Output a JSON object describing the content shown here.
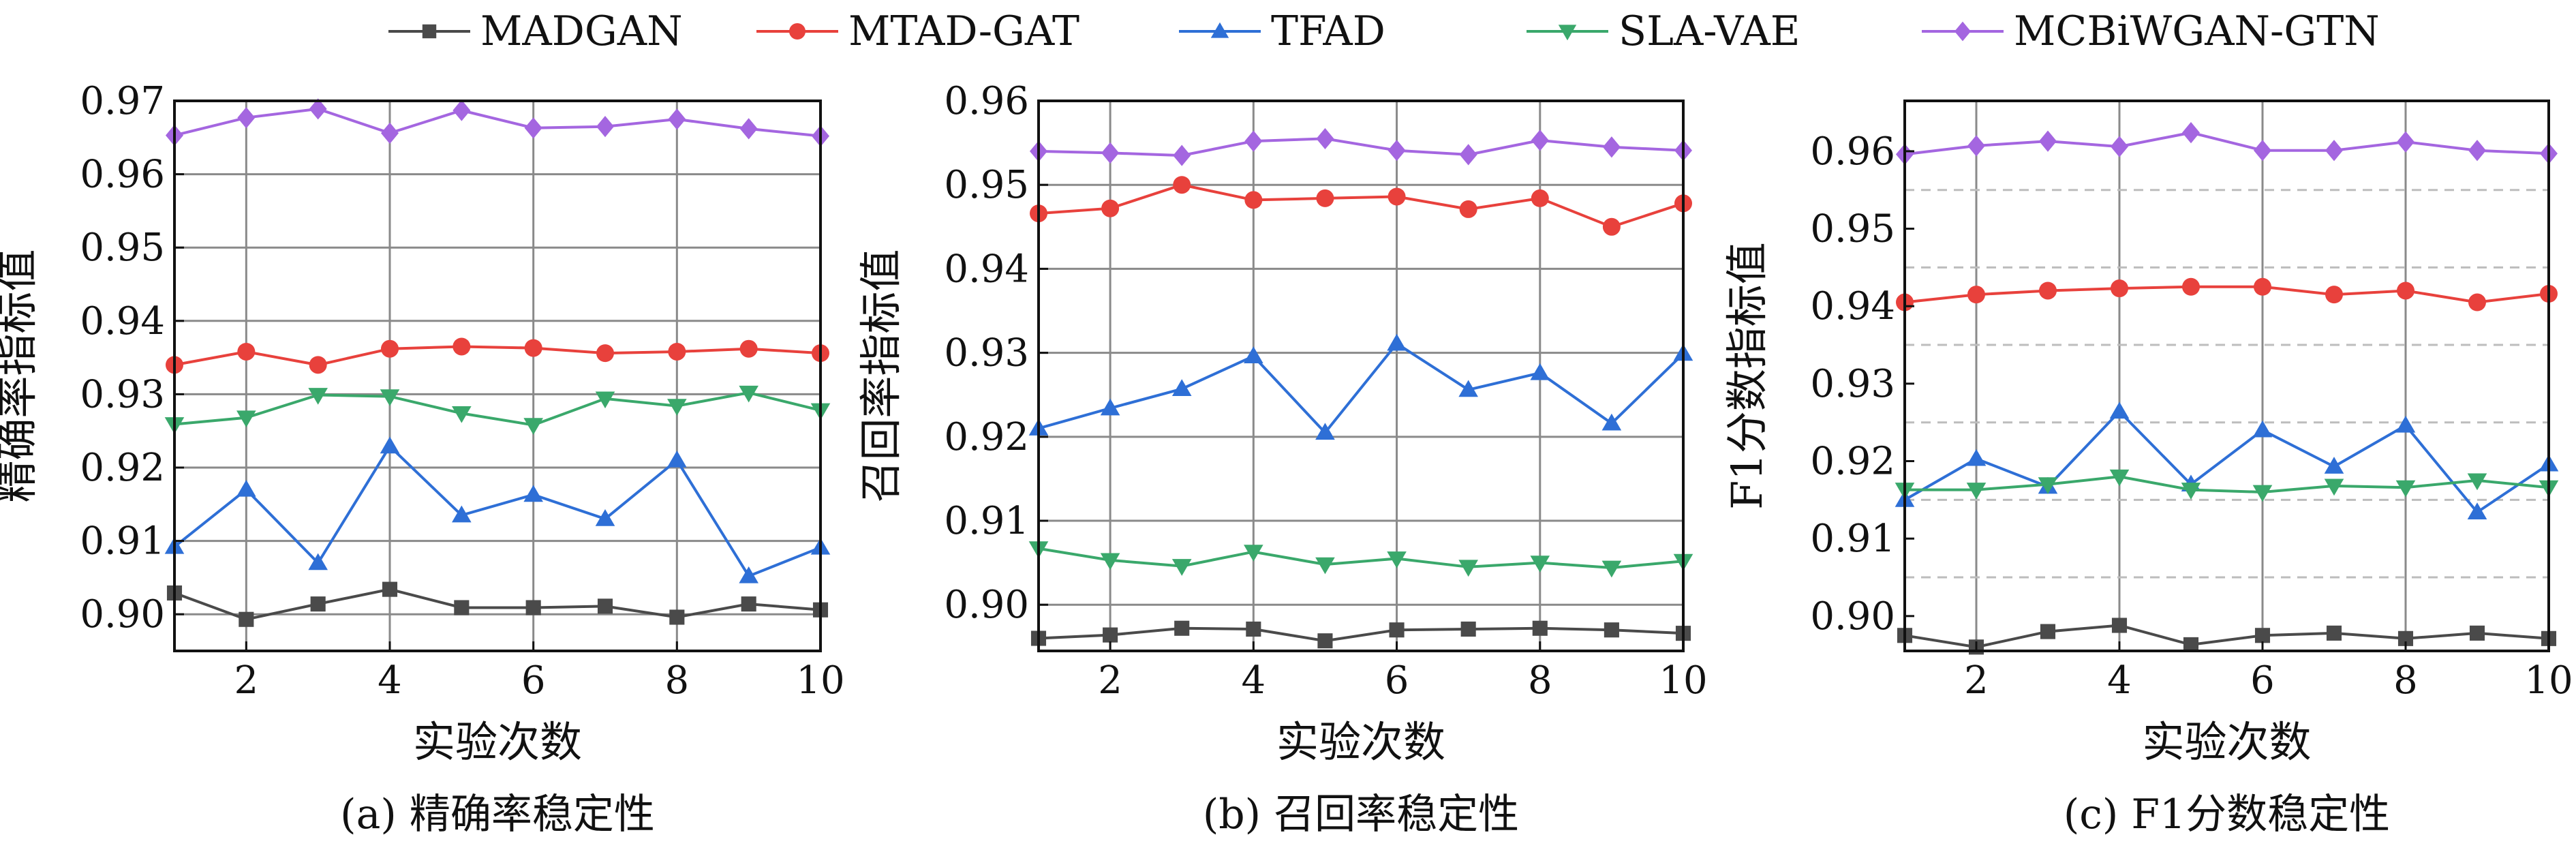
{
  "legend": [
    {
      "label": "MADGAN",
      "color": "#4a4a4a",
      "marker": "square"
    },
    {
      "label": "MTAD-GAT",
      "color": "#e8413c",
      "marker": "circle"
    },
    {
      "label": "TFAD",
      "color": "#2e6fd6",
      "marker": "triangle-up"
    },
    {
      "label": "SLA-VAE",
      "color": "#3aa86b",
      "marker": "triangle-down"
    },
    {
      "label": "MCBiWGAN-GTN",
      "color": "#a466e0",
      "marker": "diamond"
    }
  ],
  "chart_data": [
    {
      "type": "line",
      "caption": "(a) 精确率稳定性",
      "xlabel": "实验次数",
      "ylabel": "精确率指标值",
      "xlim": [
        1,
        10
      ],
      "ylim": [
        0.895,
        0.97
      ],
      "xticks": [
        2,
        4,
        6,
        8,
        10
      ],
      "yticks": [
        0.9,
        0.91,
        0.92,
        0.93,
        0.94,
        0.95,
        0.96,
        0.97
      ],
      "ytick_labels": [
        "0.90",
        "0.91",
        "0.92",
        "0.93",
        "0.94",
        "0.95",
        "0.96",
        "0.97"
      ],
      "grid": "solid",
      "x": [
        1,
        2,
        3,
        4,
        5,
        6,
        7,
        8,
        9,
        10
      ],
      "series": [
        {
          "name": "MADGAN",
          "values": [
            0.9029,
            0.8993,
            0.9014,
            0.9034,
            0.9009,
            0.9009,
            0.9011,
            0.8996,
            0.9014,
            0.9006
          ]
        },
        {
          "name": "MTAD-GAT",
          "values": [
            0.934,
            0.9358,
            0.934,
            0.9362,
            0.9365,
            0.9363,
            0.9356,
            0.9358,
            0.9362,
            0.9356
          ]
        },
        {
          "name": "TFAD",
          "values": [
            0.9092,
            0.917,
            0.907,
            0.9229,
            0.9135,
            0.9163,
            0.913,
            0.921,
            0.9052,
            0.9091
          ]
        },
        {
          "name": "SLA-VAE",
          "values": [
            0.9259,
            0.9268,
            0.9299,
            0.9297,
            0.9274,
            0.9258,
            0.9294,
            0.9284,
            0.9302,
            0.9278
          ]
        },
        {
          "name": "MCBiWGAN-GTN",
          "values": [
            0.9653,
            0.9677,
            0.9689,
            0.9656,
            0.9687,
            0.9663,
            0.9665,
            0.9675,
            0.9662,
            0.9652
          ]
        }
      ]
    },
    {
      "type": "line",
      "caption": "(b) 召回率稳定性",
      "xlabel": "实验次数",
      "ylabel": "召回率指标值",
      "xlim": [
        1,
        10
      ],
      "ylim": [
        0.8945,
        0.96
      ],
      "xticks": [
        2,
        4,
        6,
        8,
        10
      ],
      "yticks": [
        0.9,
        0.91,
        0.92,
        0.93,
        0.94,
        0.95,
        0.96
      ],
      "ytick_labels": [
        "0.90",
        "0.91",
        "0.92",
        "0.93",
        "0.94",
        "0.95",
        "0.96"
      ],
      "grid": "solid",
      "x": [
        1,
        2,
        3,
        4,
        5,
        6,
        7,
        8,
        9,
        10
      ],
      "series": [
        {
          "name": "MADGAN",
          "values": [
            0.896,
            0.8964,
            0.8972,
            0.8971,
            0.8957,
            0.897,
            0.8971,
            0.8972,
            0.897,
            0.8966
          ]
        },
        {
          "name": "MTAD-GAT",
          "values": [
            0.9466,
            0.9472,
            0.95,
            0.9482,
            0.9484,
            0.9486,
            0.9471,
            0.9484,
            0.945,
            0.9478
          ]
        },
        {
          "name": "TFAD",
          "values": [
            0.921,
            0.9234,
            0.9257,
            0.9296,
            0.9205,
            0.9311,
            0.9256,
            0.9276,
            0.9216,
            0.9299
          ]
        },
        {
          "name": "SLA-VAE",
          "values": [
            0.9067,
            0.9053,
            0.9046,
            0.9063,
            0.9048,
            0.9055,
            0.9045,
            0.905,
            0.9044,
            0.9052
          ]
        },
        {
          "name": "MCBiWGAN-GTN",
          "values": [
            0.954,
            0.9538,
            0.9535,
            0.9552,
            0.9555,
            0.9541,
            0.9536,
            0.9553,
            0.9545,
            0.9541
          ]
        }
      ]
    },
    {
      "type": "line",
      "caption": "(c) F1分数稳定性",
      "xlabel": "实验次数",
      "ylabel": "F1分数指标值",
      "xlim": [
        1,
        10
      ],
      "ylim": [
        0.8955,
        0.9665
      ],
      "xticks": [
        2,
        4,
        6,
        8,
        10
      ],
      "yticks": [
        0.9,
        0.91,
        0.92,
        0.93,
        0.94,
        0.95,
        0.96
      ],
      "ytick_labels": [
        "0.90",
        "0.91",
        "0.92",
        "0.93",
        "0.94",
        "0.95",
        "0.96"
      ],
      "grid": "dashed",
      "dashed_gridlines": [
        0.905,
        0.915,
        0.925,
        0.935,
        0.945,
        0.955
      ],
      "x": [
        1,
        2,
        3,
        4,
        5,
        6,
        7,
        8,
        9,
        10
      ],
      "series": [
        {
          "name": "MADGAN",
          "values": [
            0.8975,
            0.896,
            0.898,
            0.8988,
            0.8963,
            0.8975,
            0.8978,
            0.8971,
            0.8978,
            0.8971
          ]
        },
        {
          "name": "MTAD-GAT",
          "values": [
            0.9405,
            0.9415,
            0.942,
            0.9423,
            0.9425,
            0.9425,
            0.9415,
            0.942,
            0.9405,
            0.9416
          ]
        },
        {
          "name": "TFAD",
          "values": [
            0.915,
            0.9203,
            0.9167,
            0.9264,
            0.917,
            0.924,
            0.9193,
            0.9246,
            0.9134,
            0.9196
          ]
        },
        {
          "name": "SLA-VAE",
          "values": [
            0.9163,
            0.9163,
            0.917,
            0.918,
            0.9163,
            0.916,
            0.9168,
            0.9166,
            0.9175,
            0.9166
          ]
        },
        {
          "name": "MCBiWGAN-GTN",
          "values": [
            0.9596,
            0.9607,
            0.9613,
            0.9606,
            0.9624,
            0.9601,
            0.9601,
            0.9612,
            0.9601,
            0.9597
          ]
        }
      ]
    }
  ]
}
